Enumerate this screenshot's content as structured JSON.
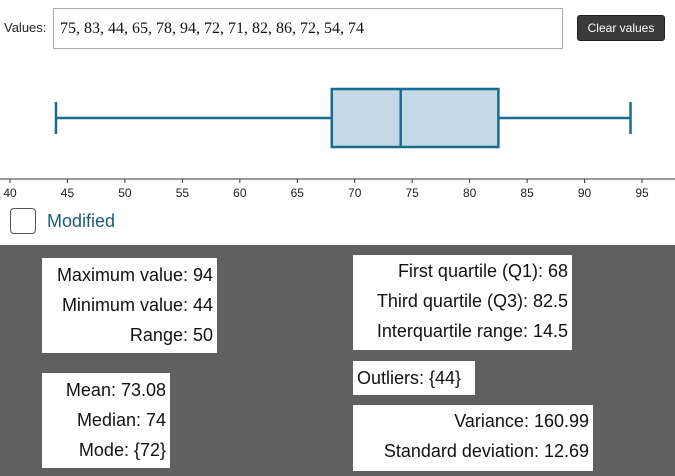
{
  "input": {
    "label": "Values:",
    "value": "75, 83, 44, 65, 78, 94, 72, 71, 82, 86, 72, 54, 74"
  },
  "clear_button": {
    "label": "Clear values"
  },
  "chart_data": {
    "type": "boxplot",
    "min": 44,
    "q1": 68,
    "median": 74,
    "q3": 82.5,
    "max": 94,
    "xlim": [
      40,
      97
    ],
    "ticks": [
      40,
      45,
      50,
      55,
      60,
      65,
      70,
      75,
      80,
      85,
      90,
      95
    ],
    "tick_labels": [
      "40",
      "45",
      "50",
      "55",
      "60",
      "65",
      "70",
      "75",
      "80",
      "85",
      "90",
      "95"
    ],
    "box_fill": "#c3d9e6",
    "stroke": "#1a6b91"
  },
  "modified": {
    "label": "Modified",
    "checked": false
  },
  "stats": {
    "group1": {
      "max": "Maximum value: 94",
      "min": "Minimum value: 44",
      "range": "Range: 50"
    },
    "group2": {
      "mean": "Mean: 73.08",
      "median": "Median: 74",
      "mode": "Mode: {72}"
    },
    "group3": {
      "q1": "First quartile (Q1): 68",
      "q3": "Third quartile (Q3): 82.5",
      "iqr": "Interquartile range: 14.5"
    },
    "outliers": "Outliers: {44}",
    "group4": {
      "variance": "Variance: 160.99",
      "sd": "Standard deviation: 12.69"
    }
  },
  "colors": {
    "panel_bg": "#606060",
    "accent": "#1d5c77"
  }
}
